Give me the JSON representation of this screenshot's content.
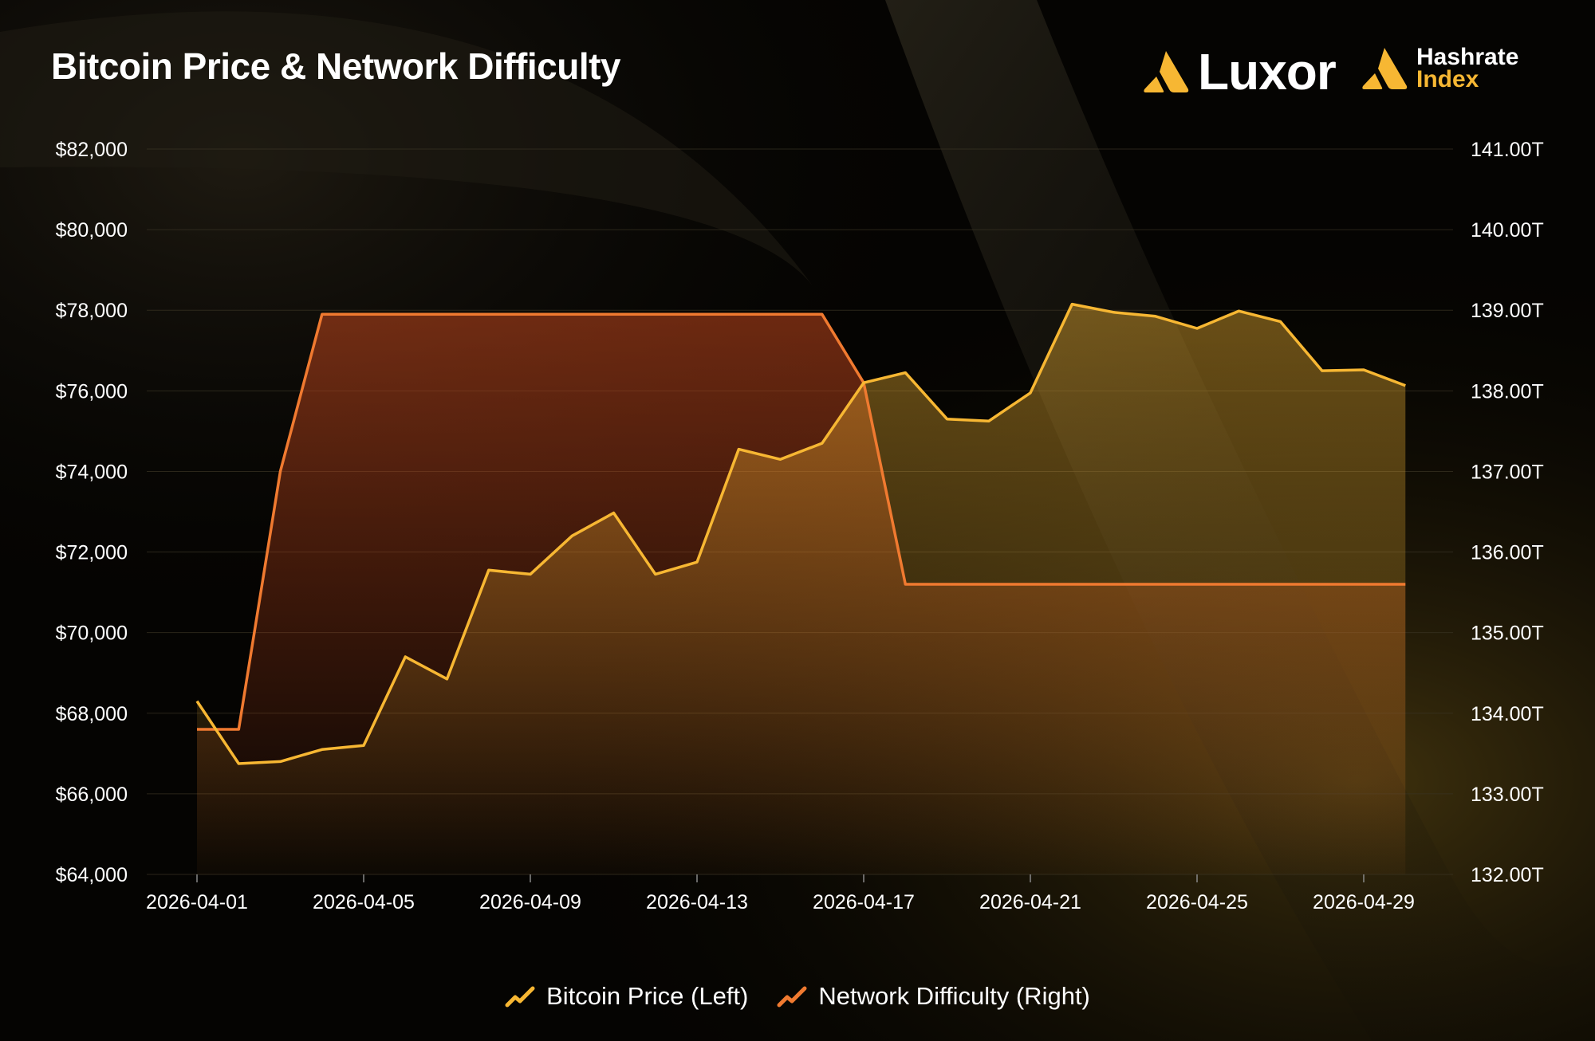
{
  "header": {
    "title": "Bitcoin Price & Network Difficulty",
    "brand_luxor": "Luxor",
    "brand_hashrate_line1": "Hashrate",
    "brand_hashrate_line2": "Index"
  },
  "colors": {
    "price": "#f7b733",
    "difficulty": "#f07a30",
    "background": "#000000",
    "grid": "#3a3424",
    "axis_text": "#ffffff"
  },
  "chart_data": {
    "type": "line",
    "title": "Bitcoin Price & Network Difficulty",
    "x_ticks": [
      "2026-04-01",
      "2026-04-05",
      "2026-04-09",
      "2026-04-13",
      "2026-04-17",
      "2026-04-21",
      "2026-04-25",
      "2026-04-29"
    ],
    "x": [
      "2026-04-01",
      "2026-04-02",
      "2026-04-03",
      "2026-04-04",
      "2026-04-05",
      "2026-04-06",
      "2026-04-07",
      "2026-04-08",
      "2026-04-09",
      "2026-04-10",
      "2026-04-11",
      "2026-04-12",
      "2026-04-13",
      "2026-04-14",
      "2026-04-15",
      "2026-04-16",
      "2026-04-17",
      "2026-04-18",
      "2026-04-19",
      "2026-04-20",
      "2026-04-21",
      "2026-04-22",
      "2026-04-23",
      "2026-04-24",
      "2026-04-25",
      "2026-04-26",
      "2026-04-27",
      "2026-04-28",
      "2026-04-29",
      "2026-04-30"
    ],
    "left_axis": {
      "ylim": [
        64000,
        82000
      ],
      "ticks": [
        82000,
        80000,
        78000,
        76000,
        74000,
        72000,
        70000,
        68000,
        66000,
        64000
      ],
      "tick_labels": [
        "$82,000",
        "$80,000",
        "$78,000",
        "$76,000",
        "$74,000",
        "$72,000",
        "$70,000",
        "$68,000",
        "$66,000",
        "$64,000"
      ]
    },
    "right_axis": {
      "ylim": [
        132,
        141
      ],
      "ticks": [
        141,
        140,
        139,
        138,
        137,
        136,
        135,
        134,
        133,
        132
      ],
      "tick_labels": [
        "141.00T",
        "140.00T",
        "139.00T",
        "138.00T",
        "137.00T",
        "136.00T",
        "135.00T",
        "134.00T",
        "133.00T",
        "132.00T"
      ]
    },
    "series": [
      {
        "name": "Bitcoin Price (Left)",
        "axis": "left",
        "values": [
          68300,
          66750,
          66800,
          67100,
          67200,
          69400,
          68850,
          71550,
          71450,
          72400,
          72970,
          71450,
          71750,
          74550,
          74300,
          74700,
          76200,
          76450,
          75300,
          75250,
          75950,
          78150,
          77950,
          77850,
          77550,
          77980,
          77720,
          76500,
          76520,
          76130
        ]
      },
      {
        "name": "Network Difficulty (Right)",
        "axis": "right",
        "values": [
          133.8,
          133.8,
          137.0,
          138.95,
          138.95,
          138.95,
          138.95,
          138.95,
          138.95,
          138.95,
          138.95,
          138.95,
          138.95,
          138.95,
          138.95,
          138.95,
          138.1,
          135.6,
          135.6,
          135.6,
          135.6,
          135.6,
          135.6,
          135.6,
          135.6,
          135.6,
          135.6,
          135.6,
          135.6,
          135.6
        ]
      }
    ],
    "grid": true,
    "legend": "bottom-center"
  }
}
